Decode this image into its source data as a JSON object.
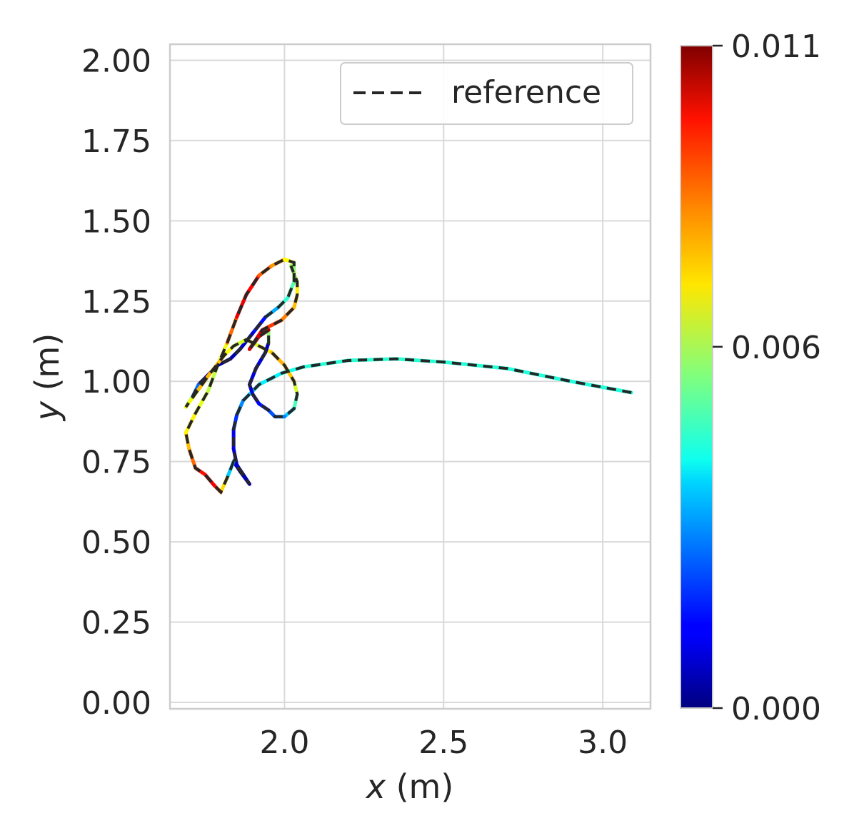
{
  "chart_data": {
    "type": "line",
    "title": "",
    "xlabel_var": "x",
    "xlabel_unit": " (m)",
    "ylabel_var": "y",
    "ylabel_unit": " (m)",
    "xlim": [
      1.64,
      3.15
    ],
    "ylim": [
      -0.02,
      2.05
    ],
    "xticks": [
      2.0,
      2.5,
      3.0
    ],
    "xtick_labels": [
      "2.0",
      "2.5",
      "3.0"
    ],
    "yticks": [
      0.0,
      0.25,
      0.5,
      0.75,
      1.0,
      1.25,
      1.5,
      1.75,
      2.0
    ],
    "ytick_labels": [
      "0.00",
      "0.25",
      "0.50",
      "0.75",
      "1.00",
      "1.25",
      "1.50",
      "1.75",
      "2.00"
    ],
    "grid": true,
    "legend": {
      "placement": "top-right",
      "entries": [
        "reference"
      ]
    },
    "colorbar": {
      "colormap": "jet",
      "min": 0.0,
      "max": 0.011,
      "tick_values": [
        0.0,
        0.006,
        0.011
      ],
      "tick_labels": [
        "0.000",
        "0.006",
        "0.011"
      ]
    },
    "series": [
      {
        "name": "reference",
        "style": "dashed",
        "color": "#262626",
        "x": [
          3.09,
          2.9,
          2.7,
          2.5,
          2.35,
          2.2,
          2.06,
          1.99,
          1.92,
          1.87,
          1.85,
          1.84,
          1.84,
          1.85,
          1.87,
          1.89,
          1.86,
          1.84,
          1.82,
          1.8,
          1.78,
          1.75,
          1.72,
          1.7,
          1.69,
          1.72,
          1.76,
          1.79,
          1.82,
          1.85,
          1.88,
          1.92,
          1.96,
          2.0,
          2.03,
          2.03,
          2.01,
          1.98,
          1.94,
          1.9,
          1.86,
          1.83,
          1.79,
          1.76,
          1.73,
          1.71,
          1.69,
          1.73,
          1.77,
          1.81,
          1.84,
          1.88,
          1.92,
          1.96,
          2.0,
          2.03,
          2.04,
          2.03,
          2.0,
          1.97,
          1.95,
          1.92,
          1.9,
          1.89,
          1.91,
          1.94,
          1.95,
          1.95,
          1.92,
          1.89,
          1.93,
          1.99,
          2.03,
          2.04,
          2.04,
          2.02
        ],
        "y": [
          0.965,
          1.0,
          1.04,
          1.06,
          1.07,
          1.065,
          1.045,
          1.025,
          0.99,
          0.94,
          0.895,
          0.85,
          0.79,
          0.74,
          0.71,
          0.68,
          0.72,
          0.75,
          0.7,
          0.655,
          0.675,
          0.71,
          0.73,
          0.79,
          0.84,
          0.9,
          0.97,
          1.05,
          1.12,
          1.2,
          1.27,
          1.33,
          1.36,
          1.38,
          1.37,
          1.31,
          1.26,
          1.23,
          1.2,
          1.15,
          1.1,
          1.07,
          1.05,
          1.02,
          0.99,
          0.95,
          0.92,
          0.975,
          1.03,
          1.08,
          1.11,
          1.13,
          1.11,
          1.09,
          1.05,
          1.0,
          0.96,
          0.915,
          0.89,
          0.89,
          0.91,
          0.93,
          0.96,
          0.99,
          1.04,
          1.09,
          1.12,
          1.16,
          1.14,
          1.1,
          1.16,
          1.19,
          1.23,
          1.27,
          1.31,
          1.36
        ]
      },
      {
        "name": "",
        "style": "solid-colormapped",
        "color_by": "error",
        "x": [
          3.09,
          2.9,
          2.7,
          2.5,
          2.35,
          2.2,
          2.06,
          1.99,
          1.92,
          1.87,
          1.85,
          1.84,
          1.84,
          1.85,
          1.87,
          1.89,
          1.86,
          1.84,
          1.82,
          1.8,
          1.78,
          1.75,
          1.72,
          1.7,
          1.69,
          1.72,
          1.76,
          1.79,
          1.82,
          1.85,
          1.88,
          1.92,
          1.96,
          2.0,
          2.03,
          2.03,
          2.01,
          1.98,
          1.94,
          1.9,
          1.86,
          1.83,
          1.79,
          1.76,
          1.73,
          1.71,
          1.69,
          1.73,
          1.77,
          1.81,
          1.84,
          1.88,
          1.92,
          1.96,
          2.0,
          2.03,
          2.04,
          2.03,
          2.0,
          1.97,
          1.95,
          1.92,
          1.9,
          1.89,
          1.91,
          1.94,
          1.95,
          1.95,
          1.92,
          1.89,
          1.93,
          1.99,
          2.03,
          2.04,
          2.04,
          2.02
        ],
        "y": [
          0.965,
          1.0,
          1.04,
          1.06,
          1.07,
          1.065,
          1.045,
          1.025,
          0.99,
          0.94,
          0.895,
          0.85,
          0.79,
          0.74,
          0.71,
          0.68,
          0.72,
          0.75,
          0.7,
          0.655,
          0.675,
          0.71,
          0.73,
          0.79,
          0.84,
          0.9,
          0.97,
          1.05,
          1.12,
          1.2,
          1.27,
          1.33,
          1.36,
          1.38,
          1.37,
          1.31,
          1.26,
          1.23,
          1.2,
          1.15,
          1.1,
          1.07,
          1.05,
          1.02,
          0.99,
          0.95,
          0.92,
          0.975,
          1.03,
          1.08,
          1.11,
          1.13,
          1.11,
          1.09,
          1.05,
          1.0,
          0.96,
          0.915,
          0.89,
          0.89,
          0.91,
          0.93,
          0.96,
          0.99,
          1.04,
          1.09,
          1.12,
          1.16,
          1.14,
          1.1,
          1.16,
          1.19,
          1.23,
          1.27,
          1.31,
          1.36
        ],
        "error": [
          0.0045,
          0.0045,
          0.0045,
          0.0046,
          0.0046,
          0.0046,
          0.0045,
          0.0042,
          0.0038,
          0.0035,
          0.0022,
          0.0015,
          0.001,
          0.0008,
          0.0005,
          0.0004,
          0.0006,
          0.0012,
          0.006,
          0.0085,
          0.0095,
          0.01,
          0.009,
          0.008,
          0.0072,
          0.0068,
          0.0064,
          0.006,
          0.0075,
          0.0095,
          0.0102,
          0.009,
          0.0082,
          0.0078,
          0.006,
          0.0052,
          0.0048,
          0.0044,
          0.002,
          0.001,
          0.0006,
          0.0005,
          0.0004,
          0.0004,
          0.0005,
          0.0045,
          0.006,
          0.0075,
          0.0078,
          0.0072,
          0.0066,
          0.0062,
          0.0066,
          0.0074,
          0.008,
          0.007,
          0.0058,
          0.004,
          0.003,
          0.0025,
          0.002,
          0.0015,
          0.001,
          0.0009,
          0.001,
          0.0008,
          0.0007,
          0.0105,
          0.011,
          0.0105,
          0.0095,
          0.0085,
          0.008,
          0.0072,
          0.0068,
          0.005
        ]
      }
    ]
  }
}
